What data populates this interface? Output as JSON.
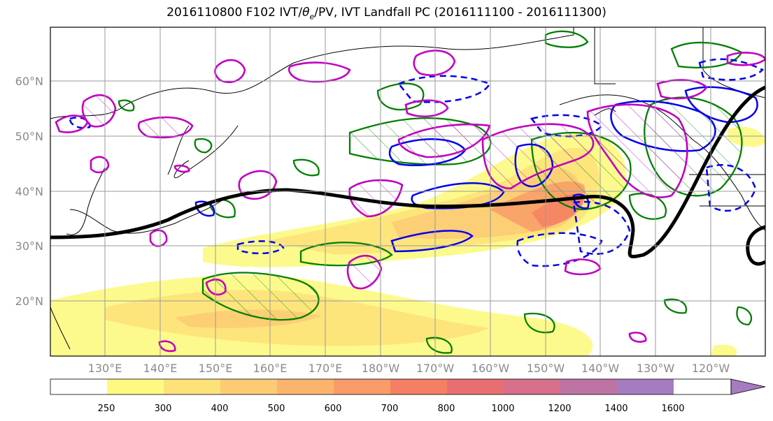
{
  "title": {
    "main": "2016110800 F102 IVT/",
    "theta": "θ",
    "sub": "e",
    "rest": "/PV, IVT Landfall PC (2016111100 - 2016111300)"
  },
  "map": {
    "lat_labels": [
      "60°N",
      "50°N",
      "40°N",
      "30°N",
      "20°N"
    ],
    "lon_labels": [
      "130°E",
      "140°E",
      "150°E",
      "160°E",
      "170°E",
      "180°W",
      "170°W",
      "160°W",
      "150°W",
      "140°W",
      "130°W",
      "120°W"
    ],
    "colors": {
      "ivt_pc_positive": "#c000c0",
      "pv_positive": "#0000ee",
      "theta_e": "#008000",
      "jet_contour": "#000000",
      "coastline": "#000000"
    }
  },
  "colorbar": {
    "levels": [
      "250",
      "300",
      "400",
      "500",
      "600",
      "700",
      "800",
      "1000",
      "1200",
      "1400",
      "1600"
    ],
    "colors": [
      "#ffffff",
      "#fdf981",
      "#fde27a",
      "#fccb74",
      "#fbb46e",
      "#f89c69",
      "#f57f64",
      "#e96e72",
      "#d7708a",
      "#bd74a5",
      "#a67cc0"
    ]
  }
}
